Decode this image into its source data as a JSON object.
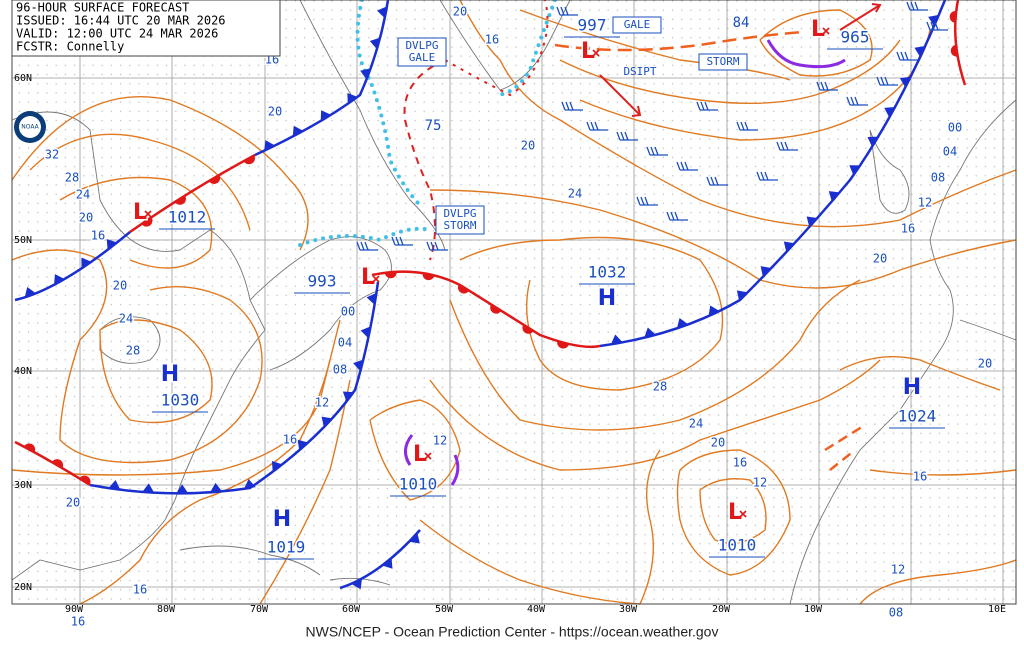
{
  "header": {
    "title": "96-HOUR SURFACE FORECAST",
    "issued": "ISSUED: 16:44 UTC 20 MAR 2026",
    "valid": "VALID:  12:00 UTC 24 MAR 2026",
    "forecaster": "FCSTR:  Connelly"
  },
  "logo": "NOAA",
  "footer": "NWS/NCEP - Ocean Prediction Center - https://ocean.weather.gov",
  "latitude_labels": [
    "60N",
    "50N",
    "40N",
    "30N",
    "20N"
  ],
  "longitude_labels": [
    "90W",
    "80W",
    "70W",
    "60W",
    "50W",
    "40W",
    "30W",
    "20W",
    "10W",
    "10E"
  ],
  "pressure_centers": [
    {
      "symbol": "L",
      "pressure": "1012"
    },
    {
      "symbol": "L",
      "pressure": "993"
    },
    {
      "symbol": "L",
      "pressure": "997"
    },
    {
      "symbol": "L",
      "pressure": "965"
    },
    {
      "symbol": "H",
      "pressure": "1032"
    },
    {
      "symbol": "H",
      "pressure": "1030"
    },
    {
      "symbol": "H",
      "pressure": "1024"
    },
    {
      "symbol": "H",
      "pressure": "1019"
    },
    {
      "symbol": "L",
      "pressure": "1010"
    },
    {
      "symbol": "L",
      "pressure": "1010"
    }
  ],
  "warnings": [
    {
      "lines": [
        "DVLPG",
        "GALE"
      ],
      "boxed": true
    },
    {
      "lines": [
        "DVLPG",
        "STORM"
      ],
      "boxed": true
    },
    {
      "lines": [
        "GALE"
      ],
      "boxed": true
    },
    {
      "lines": [
        "STORM"
      ],
      "boxed": true
    },
    {
      "lines": [
        "DSIPT"
      ],
      "boxed": false
    }
  ],
  "other_labels": [
    "75",
    "84"
  ],
  "isobar_labels": [
    "20",
    "16",
    "16",
    "20",
    "32",
    "28",
    "24",
    "20",
    "16",
    "20",
    "24",
    "28",
    "00",
    "04",
    "08",
    "12",
    "16",
    "20",
    "16",
    "16",
    "20",
    "24",
    "28",
    "24",
    "20",
    "16",
    "12",
    "12",
    "12",
    "08",
    "16",
    "20",
    "20",
    "16",
    "12",
    "08",
    "04",
    "00"
  ]
}
